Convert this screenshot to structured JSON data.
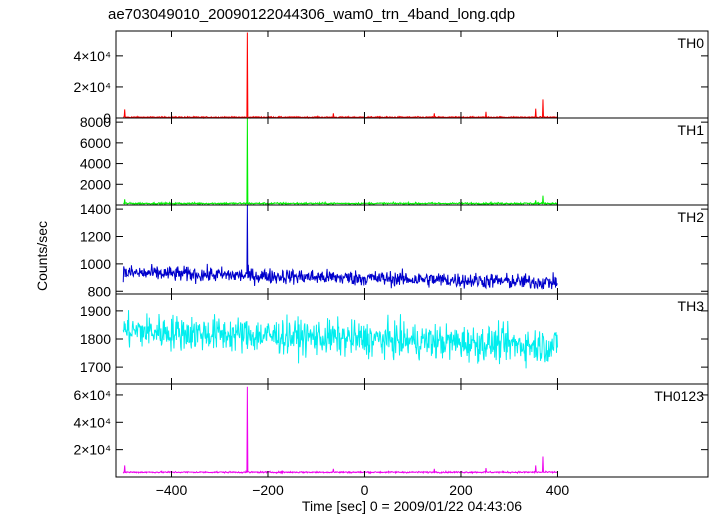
{
  "title": "ae703049010_20090122044306_wam0_trn_4band_long.qdp",
  "chart_data": {
    "type": "line",
    "xlabel": "Time [sec] 0 = 2009/01/22 04:43:06",
    "ylabel": "Counts/sec",
    "xlim": [
      -515,
      712
    ],
    "xticks": [
      -400,
      -200,
      0,
      200,
      400
    ],
    "data_x_range": [
      -500,
      400
    ],
    "grid": false,
    "panels": [
      {
        "name": "TH0",
        "color": "#ff0000",
        "ylim": [
          0,
          56000
        ],
        "yticks": [
          {
            "v": 0,
            "label": "0"
          },
          {
            "v": 20000,
            "label": "2×10⁴"
          },
          {
            "v": 40000,
            "label": "4×10⁴"
          }
        ],
        "baseline": 500,
        "noise": 300,
        "spikes": [
          {
            "x": -243,
            "y": 55000
          },
          {
            "x": -497,
            "y": 5500
          },
          {
            "x": 370,
            "y": 12000
          },
          {
            "x": 355,
            "y": 6000
          },
          {
            "x": 252,
            "y": 4000
          },
          {
            "x": -65,
            "y": 3000
          },
          {
            "x": 145,
            "y": 3000
          }
        ]
      },
      {
        "name": "TH1",
        "color": "#00ee00",
        "ylim": [
          0,
          8400
        ],
        "yticks": [
          {
            "v": 2000,
            "label": "2000"
          },
          {
            "v": 4000,
            "label": "4000"
          },
          {
            "v": 6000,
            "label": "6000"
          },
          {
            "v": 8000,
            "label": "8000"
          }
        ],
        "baseline": 150,
        "noise": 60,
        "spikes": [
          {
            "x": -243,
            "y": 8400
          },
          {
            "x": -497,
            "y": 550
          },
          {
            "x": 370,
            "y": 900
          },
          {
            "x": 355,
            "y": 450
          }
        ]
      },
      {
        "name": "TH2",
        "color": "#0000cc",
        "ylim": [
          780,
          1430
        ],
        "yticks": [
          {
            "v": 800,
            "label": "800"
          },
          {
            "v": 1000,
            "label": "1000"
          },
          {
            "v": 1200,
            "label": "1200"
          },
          {
            "v": 1400,
            "label": "1400"
          }
        ],
        "baseline_start": 935,
        "baseline_end": 865,
        "noise": 40,
        "spikes": [
          {
            "x": -243,
            "y": 1430
          }
        ]
      },
      {
        "name": "TH3",
        "color": "#00eeee",
        "ylim": [
          1640,
          1960
        ],
        "yticks": [
          {
            "v": 1700,
            "label": "1700"
          },
          {
            "v": 1800,
            "label": "1800"
          },
          {
            "v": 1900,
            "label": "1900"
          }
        ],
        "baseline_start": 1830,
        "baseline_end": 1775,
        "noise": 45,
        "spikes": []
      },
      {
        "name": "TH0123",
        "color": "#ee00ee",
        "ylim": [
          0,
          68000
        ],
        "yticks": [
          {
            "v": 20000,
            "label": "2×10⁴"
          },
          {
            "v": 40000,
            "label": "4×10⁴"
          },
          {
            "v": 60000,
            "label": "6×10⁴"
          }
        ],
        "baseline": 3500,
        "noise": 400,
        "spikes": [
          {
            "x": -243,
            "y": 66000
          },
          {
            "x": -497,
            "y": 8500
          },
          {
            "x": 370,
            "y": 15000
          },
          {
            "x": 355,
            "y": 8500
          },
          {
            "x": 252,
            "y": 6500
          },
          {
            "x": -65,
            "y": 6000
          },
          {
            "x": 145,
            "y": 6000
          }
        ]
      }
    ]
  }
}
